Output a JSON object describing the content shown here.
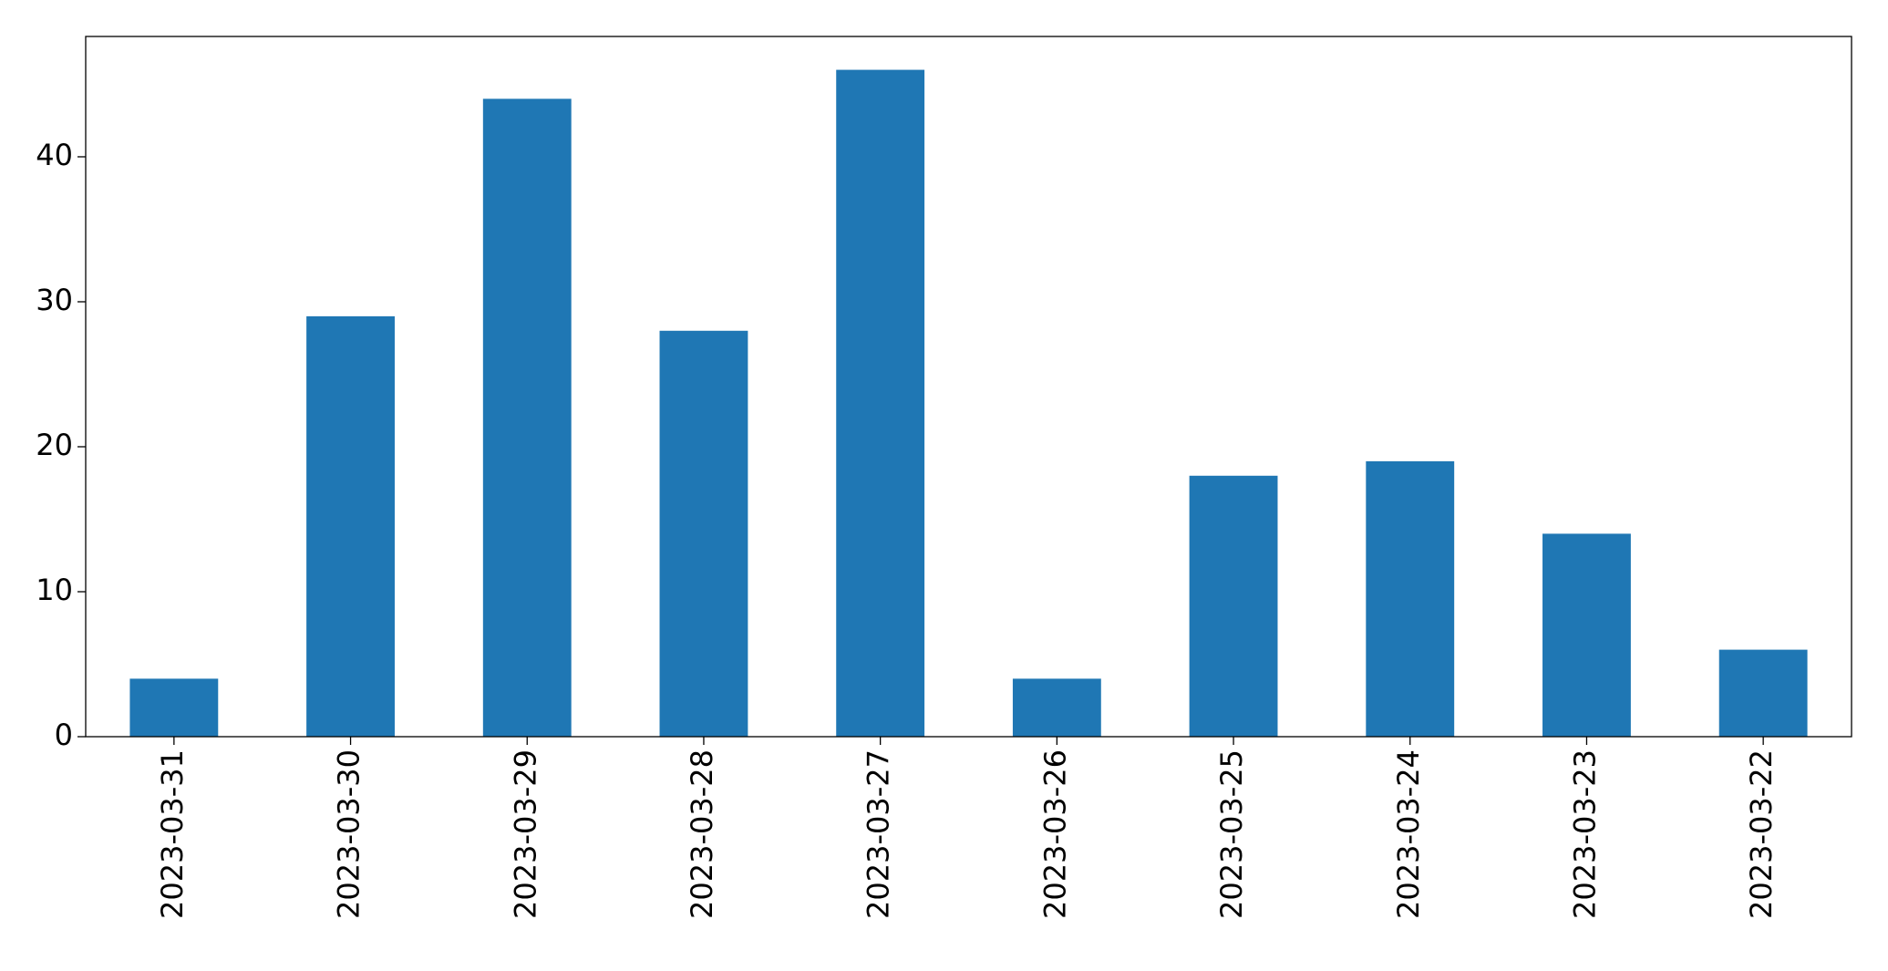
{
  "chart_data": {
    "type": "bar",
    "categories": [
      "2023-03-31",
      "2023-03-30",
      "2023-03-29",
      "2023-03-28",
      "2023-03-27",
      "2023-03-26",
      "2023-03-25",
      "2023-03-24",
      "2023-03-23",
      "2023-03-22"
    ],
    "values": [
      4,
      29,
      44,
      28,
      46,
      4,
      18,
      19,
      14,
      6
    ],
    "color": "#1f77b4",
    "ylim": [
      0,
      48.3
    ],
    "yticks": [
      0,
      10,
      20,
      30,
      40
    ],
    "grid": false
  }
}
